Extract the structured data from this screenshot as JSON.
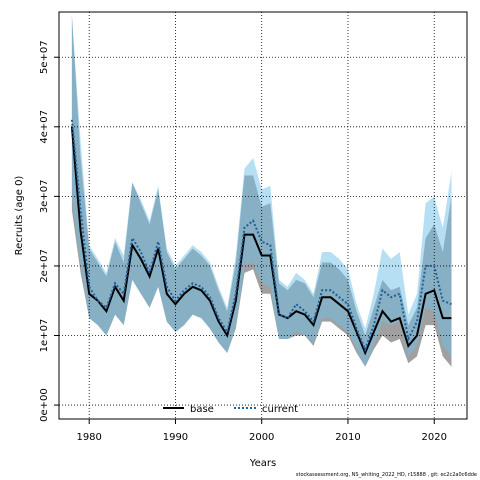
{
  "chart_data": {
    "type": "line",
    "title": "",
    "xlabel": "Years",
    "ylabel": "Recruits (age 0)",
    "xlim": [
      1976.5,
      2023.8
    ],
    "ylim": [
      -2000000,
      56500000
    ],
    "x_ticks": [
      1980,
      1990,
      2000,
      2010,
      2020
    ],
    "x_tick_labels": [
      "1980",
      "1990",
      "2000",
      "2010",
      "2020"
    ],
    "y_ticks": [
      0,
      10000000,
      20000000,
      30000000,
      40000000,
      50000000
    ],
    "y_tick_labels": [
      "0e+00",
      "1e+07",
      "2e+07",
      "3e+07",
      "4e+07",
      "5e+07"
    ],
    "grid": true,
    "legend_placement": "bottom-center",
    "x": [
      1978,
      1979,
      1980,
      1981,
      1982,
      1983,
      1984,
      1985,
      1986,
      1987,
      1988,
      1989,
      1990,
      1991,
      1992,
      1993,
      1994,
      1995,
      1996,
      1997,
      1998,
      1999,
      2000,
      2001,
      2002,
      2003,
      2004,
      2005,
      2006,
      2007,
      2008,
      2009,
      2010,
      2011,
      2012,
      2013,
      2014,
      2015,
      2016,
      2017,
      2018,
      2019,
      2020,
      2021,
      2022
    ],
    "series": [
      {
        "name": "base",
        "color": "#000000",
        "line_style": "solid",
        "band_color": "#808080",
        "values": [
          40000000,
          25000000,
          16000000,
          15000000,
          13500000,
          17000000,
          15000000,
          23000000,
          21000000,
          18500000,
          22500000,
          16000000,
          14500000,
          16000000,
          17000000,
          16500000,
          15000000,
          12000000,
          10000000,
          15000000,
          24500000,
          24500000,
          21500000,
          21500000,
          13000000,
          12500000,
          13500000,
          13000000,
          11500000,
          15500000,
          15500000,
          14500000,
          13500000,
          10500000,
          7500000,
          10500000,
          13500000,
          12000000,
          12500000,
          8500000,
          10000000,
          16000000,
          16500000,
          12500000,
          12500000
        ],
        "lower": [
          28000000,
          19000000,
          12500000,
          11500000,
          10000000,
          13000000,
          11500000,
          18000000,
          16000000,
          14000000,
          17000000,
          12000000,
          10500000,
          11500000,
          13000000,
          12500000,
          11000000,
          9000000,
          7500000,
          11000000,
          19000000,
          19500000,
          16000000,
          16000000,
          9500000,
          9500000,
          10000000,
          10000000,
          8500000,
          12000000,
          12000000,
          11000000,
          10000000,
          7500000,
          5500000,
          8000000,
          10000000,
          9000000,
          9500000,
          6000000,
          7000000,
          11500000,
          11500000,
          7000000,
          5500000
        ],
        "upper": [
          56000000,
          35500000,
          22500000,
          20500000,
          18500000,
          23500000,
          20500000,
          32000000,
          29000000,
          26000000,
          31000000,
          22000000,
          19500000,
          21000000,
          22500000,
          21500000,
          20000000,
          16500000,
          13500000,
          20500000,
          33000000,
          33000000,
          28500000,
          29000000,
          17500000,
          16500000,
          18000000,
          17500000,
          15500000,
          20500000,
          20500000,
          19500000,
          18000000,
          13500000,
          10000000,
          14000000,
          18000000,
          16500000,
          17000000,
          11500000,
          14000000,
          24000000,
          26000000,
          22000000,
          30000000
        ]
      },
      {
        "name": "current",
        "color": "#1f5f9a",
        "line_style": "dotted",
        "band_color": "#6fbfe8",
        "values": [
          41000000,
          28000000,
          17000000,
          15000000,
          14000000,
          17500000,
          16000000,
          24000000,
          22000000,
          19000000,
          23500000,
          17000000,
          15000000,
          16500000,
          17500000,
          17000000,
          15500000,
          12500000,
          10500000,
          16000000,
          25500000,
          26500000,
          23500000,
          23000000,
          13000000,
          12500000,
          14500000,
          13500000,
          12000000,
          16500000,
          16500000,
          15500000,
          14500000,
          11000000,
          8000000,
          11500000,
          16500000,
          15500000,
          16000000,
          9500000,
          12000000,
          20000000,
          20000000,
          15000000,
          14500000
        ],
        "lower": [
          30000000,
          20000000,
          12500000,
          11500000,
          10000000,
          13000000,
          11500000,
          18000000,
          16000000,
          14000000,
          17000000,
          12000000,
          10500000,
          11500000,
          13000000,
          12500000,
          11000000,
          9000000,
          7500000,
          11500000,
          20000000,
          20500000,
          17500000,
          17000000,
          9500000,
          9500000,
          10500000,
          10000000,
          9000000,
          12500000,
          12500000,
          11500000,
          10500000,
          8000000,
          5500000,
          8500000,
          12000000,
          11500000,
          12000000,
          7000000,
          8500000,
          14000000,
          13500000,
          8500000,
          7000000
        ],
        "upper": [
          56000000,
          38000000,
          23000000,
          21000000,
          19000000,
          24000000,
          21500000,
          32000000,
          29500000,
          26500000,
          31500000,
          22500000,
          20000000,
          21500000,
          23000000,
          22000000,
          20500000,
          17000000,
          14000000,
          21500000,
          34000000,
          35500000,
          31000000,
          31500000,
          18000000,
          17000000,
          19000000,
          18000000,
          16000000,
          22000000,
          22000000,
          21000000,
          19500000,
          14500000,
          11000000,
          16000000,
          22500000,
          21000000,
          22000000,
          13000000,
          16000000,
          29000000,
          30000000,
          25500000,
          33500000
        ]
      }
    ]
  },
  "footer_text": "stockassessment.org, NS_whiting_2022_HD, r15888 , git: ec2c2a0c6dde"
}
